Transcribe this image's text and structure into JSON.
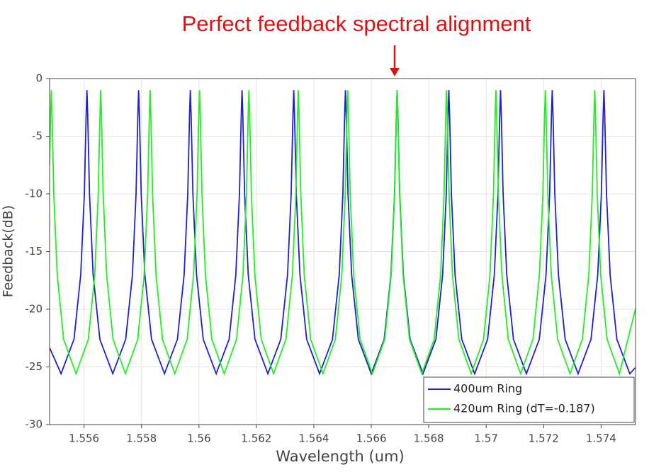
{
  "chart_data": {
    "type": "line",
    "annotation": "Perfect feedback spectral alignment",
    "xlabel": "Wavelength (um)",
    "ylabel": "Feedback(dB)",
    "xlim": [
      1.5548,
      1.5752
    ],
    "ylim": [
      -30,
      0
    ],
    "xticks": [
      1.556,
      1.558,
      1.56,
      1.562,
      1.564,
      1.566,
      1.568,
      1.57,
      1.572,
      1.574
    ],
    "yticks": [
      0,
      -5,
      -10,
      -15,
      -20,
      -25,
      -30
    ],
    "grid": true,
    "legend": "lower right",
    "series": [
      {
        "name": "400um Ring",
        "color": "#2020d0",
        "x": [
          1.5548,
          1.5552,
          1.55565,
          1.555884,
          1.55601,
          1.556073,
          1.5561,
          1.556127,
          1.55619,
          1.556316,
          1.55655,
          1.557,
          1.55745,
          1.557684,
          1.55781,
          1.557873,
          1.5579,
          1.557927,
          1.55799,
          1.558116,
          1.55835,
          1.5588,
          1.55925,
          1.559484,
          1.55961,
          1.559673,
          1.5597,
          1.559727,
          1.55979,
          1.559916,
          1.56015,
          1.5606,
          1.56105,
          1.561284,
          1.56141,
          1.561473,
          1.5615,
          1.561527,
          1.56159,
          1.561716,
          1.56195,
          1.5624,
          1.56285,
          1.563084,
          1.56321,
          1.563273,
          1.5633,
          1.563327,
          1.56339,
          1.563516,
          1.56375,
          1.5642,
          1.56465,
          1.564884,
          1.56501,
          1.565073,
          1.5651,
          1.565127,
          1.56519,
          1.565316,
          1.56555,
          1.566,
          1.56645,
          1.566684,
          1.56681,
          1.566873,
          1.5669,
          1.566927,
          1.56699,
          1.567116,
          1.56735,
          1.5678,
          1.56825,
          1.568484,
          1.56861,
          1.568673,
          1.5687,
          1.568727,
          1.56879,
          1.568916,
          1.56915,
          1.5696,
          1.57005,
          1.570284,
          1.57041,
          1.570473,
          1.5705,
          1.570527,
          1.57059,
          1.570716,
          1.57095,
          1.5714,
          1.57185,
          1.572084,
          1.57221,
          1.572273,
          1.5723,
          1.572327,
          1.57239,
          1.572516,
          1.57275,
          1.5732,
          1.57365,
          1.573884,
          1.57401,
          1.574073,
          1.5741,
          1.574127,
          1.57419,
          1.574316,
          1.57455,
          1.575,
          1.5752
        ],
        "values": [
          -23.34,
          -25.59,
          -22.6,
          -17.01,
          -10.04,
          -3.14,
          -1,
          -3.14,
          -10.04,
          -17.01,
          -22.6,
          -25.59,
          -22.6,
          -17.01,
          -10.04,
          -3.14,
          -1,
          -3.14,
          -10.04,
          -17.01,
          -22.6,
          -25.59,
          -22.6,
          -17.01,
          -10.04,
          -3.14,
          -1,
          -3.14,
          -10.04,
          -17.01,
          -22.6,
          -25.59,
          -22.6,
          -17.01,
          -10.04,
          -3.14,
          -1,
          -3.14,
          -10.04,
          -17.01,
          -22.6,
          -25.59,
          -22.6,
          -17.01,
          -10.04,
          -3.14,
          -1,
          -3.14,
          -10.04,
          -17.01,
          -22.6,
          -25.59,
          -22.6,
          -17.01,
          -10.04,
          -3.14,
          -1,
          -3.14,
          -10.04,
          -17.01,
          -22.6,
          -25.59,
          -22.6,
          -17.01,
          -10.04,
          -3.14,
          -1,
          -3.14,
          -10.04,
          -17.01,
          -22.6,
          -25.59,
          -22.6,
          -17.01,
          -10.04,
          -3.14,
          -1,
          -3.14,
          -10.04,
          -17.01,
          -22.6,
          -25.59,
          -22.6,
          -17.01,
          -10.04,
          -3.14,
          -1,
          -3.14,
          -10.04,
          -17.01,
          -22.6,
          -25.59,
          -22.6,
          -17.01,
          -10.04,
          -3.14,
          -1,
          -3.14,
          -10.04,
          -17.01,
          -22.6,
          -25.59,
          -22.6,
          -17.01,
          -10.04,
          -3.14,
          -1,
          -3.14,
          -10.04,
          -17.01,
          -22.6,
          -25.59,
          -25.06
        ]
      },
      {
        "name": "420um Ring (dT=-0.187)",
        "color": "#22ee22",
        "x": [
          1.5548,
          1.554834,
          1.55486,
          1.554886,
          1.554946,
          1.555066,
          1.55529,
          1.55572,
          1.55615,
          1.556374,
          1.556494,
          1.556554,
          1.55658,
          1.556606,
          1.556666,
          1.556786,
          1.55701,
          1.55744,
          1.55787,
          1.558094,
          1.558214,
          1.558274,
          1.5583,
          1.558326,
          1.558386,
          1.558506,
          1.55873,
          1.55916,
          1.55959,
          1.559814,
          1.559934,
          1.559994,
          1.56002,
          1.560046,
          1.560106,
          1.560226,
          1.56045,
          1.56088,
          1.56131,
          1.561534,
          1.561654,
          1.561714,
          1.56174,
          1.561766,
          1.561826,
          1.561946,
          1.56217,
          1.5626,
          1.56303,
          1.563254,
          1.563374,
          1.563434,
          1.56346,
          1.563486,
          1.563546,
          1.563666,
          1.56389,
          1.56432,
          1.56475,
          1.564974,
          1.565094,
          1.565154,
          1.56518,
          1.565206,
          1.565266,
          1.565386,
          1.56561,
          1.56604,
          1.56647,
          1.566694,
          1.566814,
          1.566874,
          1.5669,
          1.566926,
          1.566986,
          1.567106,
          1.56733,
          1.56776,
          1.56819,
          1.568414,
          1.568534,
          1.568594,
          1.56862,
          1.568646,
          1.568706,
          1.568826,
          1.56905,
          1.56948,
          1.56991,
          1.570134,
          1.570254,
          1.570314,
          1.57034,
          1.570366,
          1.570426,
          1.570546,
          1.57077,
          1.5712,
          1.57163,
          1.571854,
          1.571974,
          1.572034,
          1.57206,
          1.572086,
          1.572146,
          1.572266,
          1.57249,
          1.57292,
          1.57335,
          1.573574,
          1.573694,
          1.573754,
          1.57378,
          1.573806,
          1.573866,
          1.573986,
          1.57421,
          1.57464,
          1.5752
        ],
        "values": [
          -7.49,
          -3.14,
          -1,
          -3.14,
          -10.04,
          -17.01,
          -22.6,
          -25.59,
          -22.6,
          -17.01,
          -10.04,
          -3.14,
          -1,
          -3.14,
          -10.04,
          -17.01,
          -22.6,
          -25.59,
          -22.6,
          -17.01,
          -10.04,
          -3.14,
          -1,
          -3.14,
          -10.04,
          -17.01,
          -22.6,
          -25.59,
          -22.6,
          -17.01,
          -10.04,
          -3.14,
          -1,
          -3.14,
          -10.04,
          -17.01,
          -22.6,
          -25.59,
          -22.6,
          -17.01,
          -10.04,
          -3.14,
          -1,
          -3.14,
          -10.04,
          -17.01,
          -22.6,
          -25.59,
          -22.6,
          -17.01,
          -10.04,
          -3.14,
          -1,
          -3.14,
          -10.04,
          -17.01,
          -22.6,
          -25.59,
          -22.6,
          -17.01,
          -10.04,
          -3.14,
          -1,
          -3.14,
          -10.04,
          -17.01,
          -22.6,
          -25.59,
          -22.6,
          -17.01,
          -10.04,
          -3.14,
          -1,
          -3.14,
          -10.04,
          -17.01,
          -22.6,
          -25.59,
          -22.6,
          -17.01,
          -10.04,
          -3.14,
          -1,
          -3.14,
          -10.04,
          -17.01,
          -22.6,
          -25.59,
          -22.6,
          -17.01,
          -10.04,
          -3.14,
          -1,
          -3.14,
          -10.04,
          -17.01,
          -22.6,
          -25.59,
          -22.6,
          -17.01,
          -10.04,
          -3.14,
          -1,
          -3.14,
          -10.04,
          -17.01,
          -22.6,
          -25.59,
          -22.6,
          -17.01,
          -10.04,
          -3.14,
          -1,
          -3.14,
          -10.04,
          -17.01,
          -22.6,
          -25.59,
          -19.95
        ]
      }
    ]
  }
}
